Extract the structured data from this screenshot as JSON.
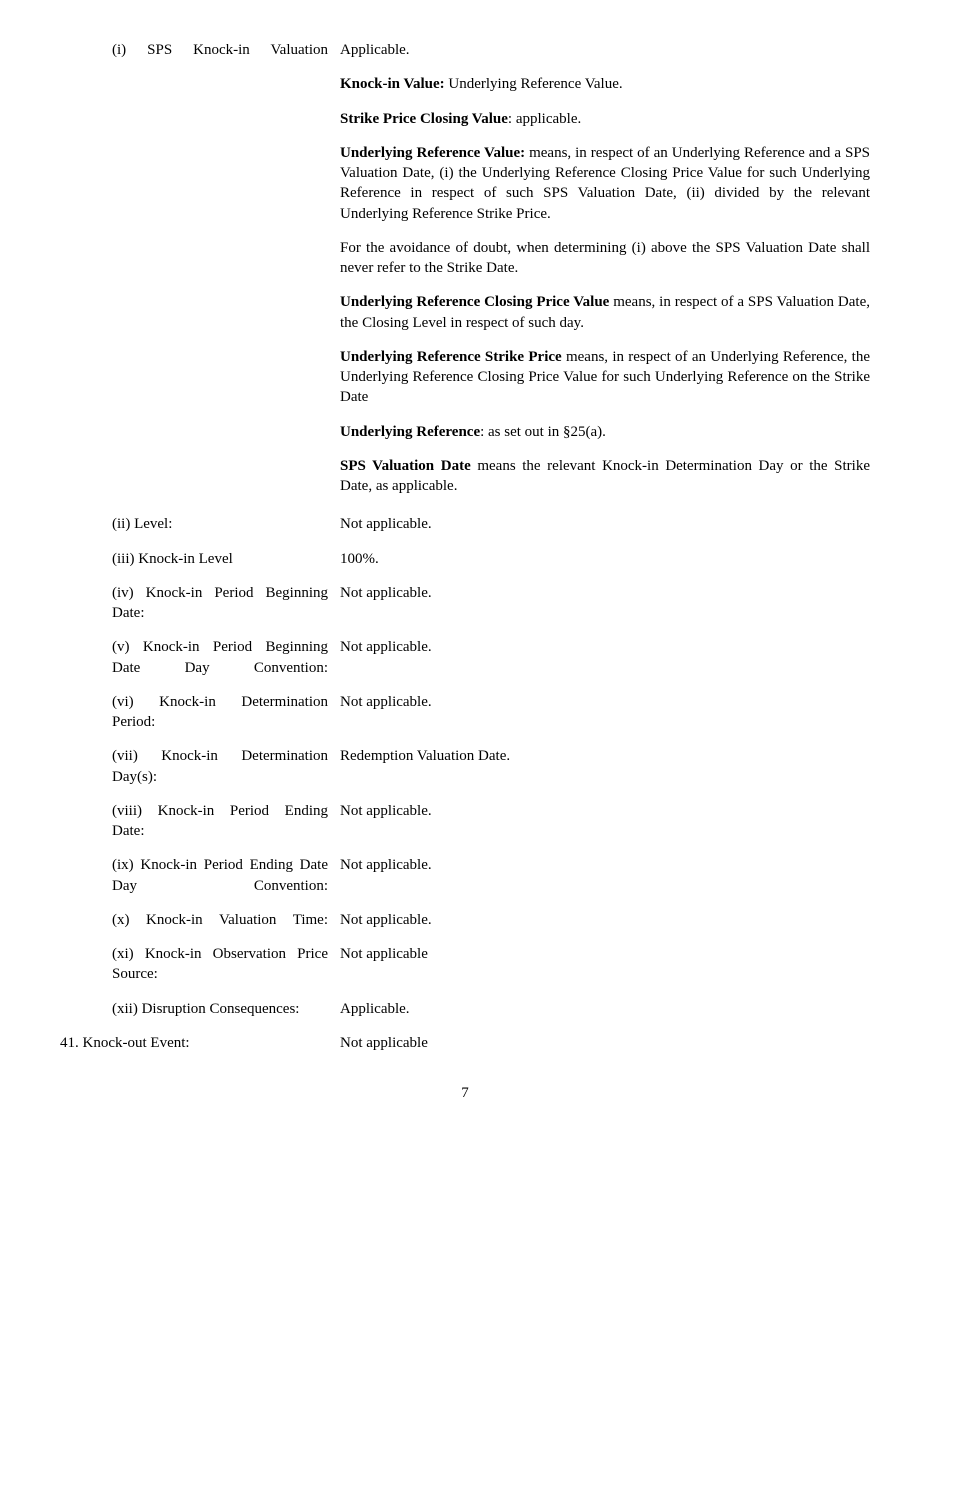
{
  "items": {
    "i_label": "(i) SPS Knock-in Valuation",
    "ii_label": "(ii) Level:",
    "iii_label": "(iii) Knock-in Level",
    "iv_label": "(iv) Knock-in Period Beginning Date:",
    "v_label": "(v) Knock-in Period Beginning Date Day Convention:",
    "vi_label": "(vi) Knock-in Determination Period:",
    "vii_label": "(vii) Knock-in Determination Day(s):",
    "viii_label": "(viii) Knock-in Period Ending Date:",
    "ix_label": "(ix) Knock-in Period Ending Date Day Convention:",
    "x_label": "(x) Knock-in Valuation Time:",
    "xi_label": "(xi) Knock-in Observation Price Source:",
    "xii_label": "(xii) Disruption Consequences:",
    "item41_label": "41. Knock-out Event:"
  },
  "top": {
    "applicable": "Applicable.",
    "knockin_value_b": "Knock-in Value:",
    "knockin_value_rest": " Underlying Reference Value.",
    "strike_b": "Strike Price Closing Value",
    "strike_rest": ": applicable.",
    "urv_b": "Underlying Reference Value:",
    "urv_rest": " means, in respect of an Underlying Reference and a SPS Valuation Date, (i) the Underlying Reference Closing Price Value for such Underlying Reference in respect of such SPS Valuation Date, (ii) divided by the relevant Underlying Reference Strike Price.",
    "avoidance": "For the avoidance of doubt, when determining (i) above the SPS Valuation Date shall never refer to the Strike Date.",
    "urcpv_b": "Underlying Reference Closing Price Value",
    "urcpv_rest": " means, in respect of a SPS Valuation Date, the Closing Level in respect of such day.",
    "ursp_b": "Underlying Reference Strike Price",
    "ursp_rest": " means, in respect of an Underlying Reference, the Underlying Reference Closing Price Value for such Underlying Reference on the Strike Date",
    "ur_b": "Underlying Reference",
    "ur_rest": ": as set out in §25(a).",
    "spsvd_b": "SPS Valuation Date",
    "spsvd_rest": " means the relevant Knock-in Determination Day or the Strike Date, as applicable."
  },
  "values": {
    "not_applicable_period": "Not applicable.",
    "not_applicable": "Not applicable",
    "applicable_period": "Applicable.",
    "hundred": "100%.",
    "rvd": "Redemption Valuation Date."
  },
  "page_number": "7"
}
